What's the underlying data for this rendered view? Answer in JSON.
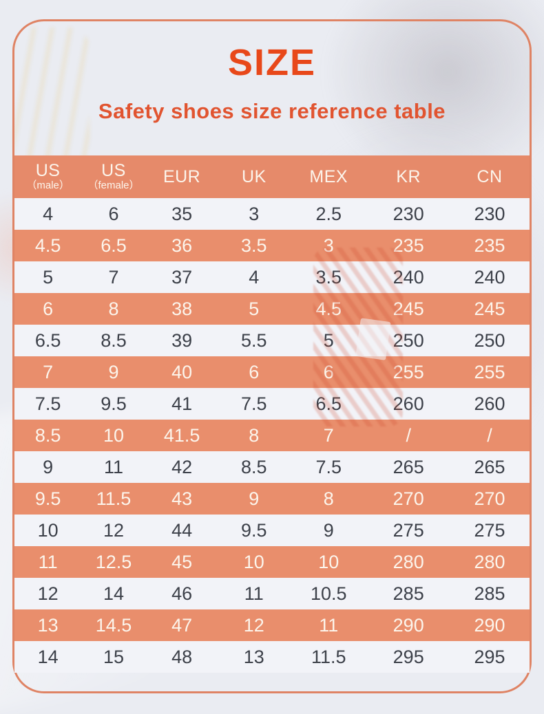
{
  "header": {
    "title": "SIZE",
    "subtitle": "Safety shoes size reference table"
  },
  "table": {
    "columns": [
      {
        "label": "US",
        "sublabel": "（male）"
      },
      {
        "label": "US",
        "sublabel": "（female）"
      },
      {
        "label": "EUR",
        "sublabel": ""
      },
      {
        "label": "UK",
        "sublabel": ""
      },
      {
        "label": "MEX",
        "sublabel": ""
      },
      {
        "label": "KR",
        "sublabel": ""
      },
      {
        "label": "CN",
        "sublabel": ""
      }
    ],
    "rows": [
      [
        "4",
        "6",
        "35",
        "3",
        "2.5",
        "230",
        "230"
      ],
      [
        "4.5",
        "6.5",
        "36",
        "3.5",
        "3",
        "235",
        "235"
      ],
      [
        "5",
        "7",
        "37",
        "4",
        "3.5",
        "240",
        "240"
      ],
      [
        "6",
        "8",
        "38",
        "5",
        "4.5",
        "245",
        "245"
      ],
      [
        "6.5",
        "8.5",
        "39",
        "5.5",
        "5",
        "250",
        "250"
      ],
      [
        "7",
        "9",
        "40",
        "6",
        "6",
        "255",
        "255"
      ],
      [
        "7.5",
        "9.5",
        "41",
        "7.5",
        "6.5",
        "260",
        "260"
      ],
      [
        "8.5",
        "10",
        "41.5",
        "8",
        "7",
        "/",
        "/"
      ],
      [
        "9",
        "11",
        "42",
        "8.5",
        "7.5",
        "265",
        "265"
      ],
      [
        "9.5",
        "11.5",
        "43",
        "9",
        "8",
        "270",
        "270"
      ],
      [
        "10",
        "12",
        "44",
        "9.5",
        "9",
        "275",
        "275"
      ],
      [
        "11",
        "12.5",
        "45",
        "10",
        "10",
        "280",
        "280"
      ],
      [
        "12",
        "14",
        "46",
        "11",
        "10.5",
        "285",
        "285"
      ],
      [
        "13",
        "14.5",
        "47",
        "12",
        "11",
        "290",
        "290"
      ],
      [
        "14",
        "15",
        "48",
        "13",
        "11.5",
        "295",
        "295"
      ]
    ]
  },
  "colors": {
    "accent": "#e8481a",
    "subtitle": "#e15430",
    "header_bg": "#e68a6a",
    "row_alt_bg": "#e98e6c",
    "row_bg": "#f2f3f8",
    "row_text": "#3c4049",
    "row_alt_text": "#fcf5ec",
    "frame_border": "#df8364"
  }
}
